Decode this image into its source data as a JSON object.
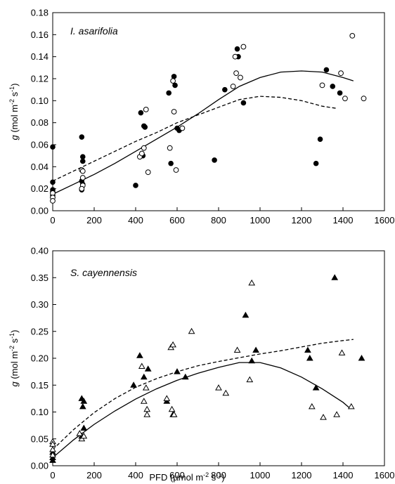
{
  "chart_data": [
    {
      "type": "scatter",
      "panel_label": "I. asarifolia",
      "xlabel": "",
      "ylabel": {
        "g": "g",
        "unit_open": "(mol m",
        "sup1": "-2",
        "mid": " s",
        "sup2": "-1",
        "close": ")"
      },
      "xlim": [
        0,
        1600
      ],
      "ylim": [
        0,
        0.18
      ],
      "xticks": [
        "0",
        "200",
        "400",
        "600",
        "800",
        "1000",
        "1200",
        "1400",
        "1600"
      ],
      "yticks": [
        "0.00",
        "0.02",
        "0.04",
        "0.06",
        "0.08",
        "0.10",
        "0.12",
        "0.14",
        "0.16",
        "0.18"
      ],
      "grid": false,
      "series": [
        {
          "marker": "filled-circle",
          "points": [
            [
              0,
              0.058
            ],
            [
              0,
              0.026
            ],
            [
              0,
              0.019
            ],
            [
              0,
              0.017
            ],
            [
              0,
              0.014
            ],
            [
              140,
              0.067
            ],
            [
              145,
              0.049
            ],
            [
              145,
              0.045
            ],
            [
              140,
              0.027
            ],
            [
              145,
              0.024
            ],
            [
              140,
              0.019
            ],
            [
              400,
              0.023
            ],
            [
              425,
              0.089
            ],
            [
              435,
              0.05
            ],
            [
              440,
              0.077
            ],
            [
              445,
              0.076
            ],
            [
              560,
              0.107
            ],
            [
              570,
              0.043
            ],
            [
              585,
              0.122
            ],
            [
              590,
              0.114
            ],
            [
              600,
              0.075
            ],
            [
              610,
              0.073
            ],
            [
              780,
              0.046
            ],
            [
              830,
              0.11
            ],
            [
              890,
              0.147
            ],
            [
              895,
              0.14
            ],
            [
              920,
              0.098
            ],
            [
              1270,
              0.043
            ],
            [
              1290,
              0.065
            ],
            [
              1320,
              0.128
            ],
            [
              1350,
              0.113
            ],
            [
              1385,
              0.107
            ]
          ]
        },
        {
          "marker": "open-circle",
          "points": [
            [
              0,
              0.016
            ],
            [
              0,
              0.012
            ],
            [
              0,
              0.009
            ],
            [
              140,
              0.037
            ],
            [
              145,
              0.036
            ],
            [
              145,
              0.03
            ],
            [
              145,
              0.023
            ],
            [
              140,
              0.02
            ],
            [
              420,
              0.049
            ],
            [
              430,
              0.052
            ],
            [
              440,
              0.057
            ],
            [
              450,
              0.092
            ],
            [
              460,
              0.035
            ],
            [
              565,
              0.057
            ],
            [
              580,
              0.118
            ],
            [
              585,
              0.09
            ],
            [
              595,
              0.037
            ],
            [
              625,
              0.075
            ],
            [
              870,
              0.113
            ],
            [
              880,
              0.14
            ],
            [
              885,
              0.125
            ],
            [
              905,
              0.121
            ],
            [
              920,
              0.149
            ],
            [
              1300,
              0.114
            ],
            [
              1390,
              0.125
            ],
            [
              1410,
              0.102
            ],
            [
              1445,
              0.159
            ],
            [
              1500,
              0.102
            ]
          ]
        }
      ],
      "curves": [
        {
          "style": "solid",
          "points": [
            [
              0,
              0.015
            ],
            [
              100,
              0.024
            ],
            [
              200,
              0.033
            ],
            [
              300,
              0.043
            ],
            [
              400,
              0.054
            ],
            [
              500,
              0.065
            ],
            [
              600,
              0.076
            ],
            [
              700,
              0.088
            ],
            [
              800,
              0.101
            ],
            [
              900,
              0.113
            ],
            [
              1000,
              0.121
            ],
            [
              1100,
              0.126
            ],
            [
              1200,
              0.127
            ],
            [
              1300,
              0.126
            ],
            [
              1400,
              0.121
            ],
            [
              1450,
              0.118
            ]
          ]
        },
        {
          "style": "dashed",
          "points": [
            [
              0,
              0.027
            ],
            [
              100,
              0.036
            ],
            [
              200,
              0.045
            ],
            [
              300,
              0.054
            ],
            [
              400,
              0.063
            ],
            [
              500,
              0.071
            ],
            [
              600,
              0.08
            ],
            [
              700,
              0.087
            ],
            [
              800,
              0.094
            ],
            [
              900,
              0.101
            ],
            [
              1000,
              0.104
            ],
            [
              1100,
              0.103
            ],
            [
              1200,
              0.1
            ],
            [
              1300,
              0.095
            ],
            [
              1370,
              0.093
            ]
          ]
        }
      ]
    },
    {
      "type": "scatter",
      "panel_label": "S. cayennensis",
      "xlabel": {
        "pre": "PFD (µmol m",
        "sup1": "-2",
        "mid": " s",
        "sup2": "-1",
        "close": ")"
      },
      "ylabel": {
        "g": "g",
        "unit_open": "(mol m",
        "sup1": "-2",
        "mid": " s",
        "sup2": "-1",
        "close": ")"
      },
      "xlim": [
        0,
        1600
      ],
      "ylim": [
        0,
        0.4
      ],
      "xticks": [
        "0",
        "200",
        "400",
        "600",
        "800",
        "1000",
        "1200",
        "1400",
        "1600"
      ],
      "yticks": [
        "0.00",
        "0.05",
        "0.10",
        "0.15",
        "0.20",
        "0.25",
        "0.30",
        "0.35",
        "0.40"
      ],
      "grid": false,
      "series": [
        {
          "marker": "filled-triangle",
          "points": [
            [
              0,
              0.025
            ],
            [
              0,
              0.015
            ],
            [
              0,
              0.01
            ],
            [
              140,
              0.125
            ],
            [
              145,
              0.11
            ],
            [
              150,
              0.12
            ],
            [
              150,
              0.07
            ],
            [
              140,
              0.055
            ],
            [
              390,
              0.15
            ],
            [
              420,
              0.205
            ],
            [
              440,
              0.165
            ],
            [
              460,
              0.18
            ],
            [
              550,
              0.12
            ],
            [
              580,
              0.095
            ],
            [
              600,
              0.175
            ],
            [
              640,
              0.165
            ],
            [
              930,
              0.28
            ],
            [
              960,
              0.195
            ],
            [
              980,
              0.215
            ],
            [
              1230,
              0.215
            ],
            [
              1240,
              0.2
            ],
            [
              1270,
              0.145
            ],
            [
              1360,
              0.35
            ],
            [
              1490,
              0.2
            ]
          ]
        },
        {
          "marker": "open-triangle",
          "points": [
            [
              0,
              0.045
            ],
            [
              0,
              0.04
            ],
            [
              0,
              0.03
            ],
            [
              0,
              0.02
            ],
            [
              130,
              0.06
            ],
            [
              140,
              0.05
            ],
            [
              150,
              0.055
            ],
            [
              430,
              0.185
            ],
            [
              440,
              0.12
            ],
            [
              450,
              0.145
            ],
            [
              455,
              0.105
            ],
            [
              455,
              0.095
            ],
            [
              550,
              0.125
            ],
            [
              570,
              0.22
            ],
            [
              575,
              0.105
            ],
            [
              580,
              0.225
            ],
            [
              585,
              0.095
            ],
            [
              670,
              0.25
            ],
            [
              800,
              0.145
            ],
            [
              835,
              0.135
            ],
            [
              890,
              0.215
            ],
            [
              950,
              0.16
            ],
            [
              960,
              0.34
            ],
            [
              1250,
              0.11
            ],
            [
              1305,
              0.09
            ],
            [
              1370,
              0.095
            ],
            [
              1395,
              0.21
            ],
            [
              1440,
              0.11
            ]
          ]
        }
      ],
      "curves": [
        {
          "style": "solid",
          "points": [
            [
              0,
              0.015
            ],
            [
              100,
              0.048
            ],
            [
              200,
              0.077
            ],
            [
              300,
              0.102
            ],
            [
              400,
              0.124
            ],
            [
              500,
              0.143
            ],
            [
              600,
              0.159
            ],
            [
              700,
              0.172
            ],
            [
              800,
              0.183
            ],
            [
              900,
              0.192
            ],
            [
              1000,
              0.192
            ],
            [
              1100,
              0.182
            ],
            [
              1200,
              0.165
            ],
            [
              1300,
              0.143
            ],
            [
              1400,
              0.118
            ],
            [
              1430,
              0.108
            ]
          ]
        },
        {
          "style": "dashed",
          "points": [
            [
              0,
              0.03
            ],
            [
              100,
              0.067
            ],
            [
              200,
              0.099
            ],
            [
              300,
              0.125
            ],
            [
              400,
              0.146
            ],
            [
              500,
              0.162
            ],
            [
              600,
              0.175
            ],
            [
              700,
              0.186
            ],
            [
              800,
              0.194
            ],
            [
              900,
              0.201
            ],
            [
              1000,
              0.208
            ],
            [
              1100,
              0.214
            ],
            [
              1200,
              0.221
            ],
            [
              1300,
              0.228
            ],
            [
              1400,
              0.233
            ],
            [
              1450,
              0.235
            ]
          ]
        }
      ]
    }
  ]
}
